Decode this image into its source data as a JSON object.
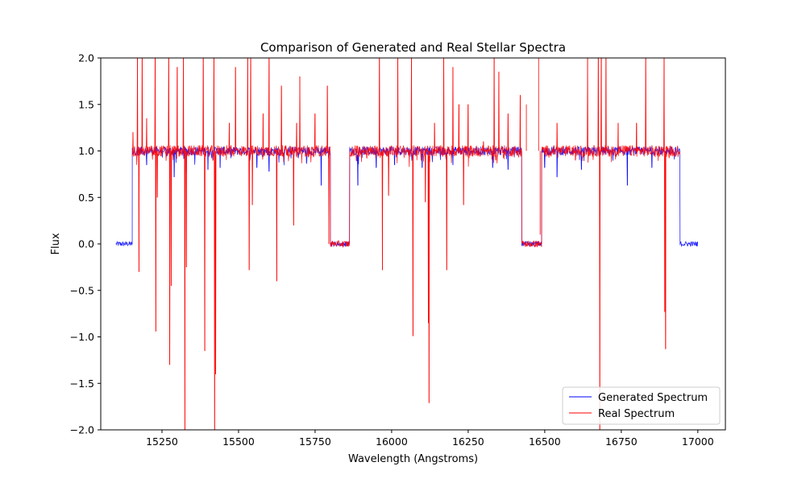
{
  "chart_data": {
    "type": "line",
    "title": "Comparison of Generated and Real Stellar Spectra",
    "xlabel": "Wavelength (Angstroms)",
    "ylabel": "Flux",
    "xlim": [
      15050,
      17090
    ],
    "ylim": [
      -2.0,
      2.0
    ],
    "xticks": [
      15250,
      15500,
      15750,
      16000,
      16250,
      16500,
      16750,
      17000
    ],
    "xtick_labels": [
      "15250",
      "15500",
      "15750",
      "16000",
      "16250",
      "16500",
      "16750",
      "17000"
    ],
    "yticks": [
      -2.0,
      -1.5,
      -1.0,
      -0.5,
      0.0,
      0.5,
      1.0,
      1.5,
      2.0
    ],
    "ytick_labels": [
      "−2.0",
      "−1.5",
      "−1.0",
      "−0.5",
      "0.0",
      "0.5",
      "1.0",
      "1.5",
      "2.0"
    ],
    "grid": false,
    "legend_position": "bottom-right",
    "series": [
      {
        "name": "Generated Spectrum",
        "color": "#0000ff",
        "x_range": [
          15100,
          17000
        ],
        "baseline_segments": [
          {
            "x": [
              15100,
              15153
            ],
            "y": 0.0
          },
          {
            "x": [
              15153,
              15800
            ],
            "y": 1.0
          },
          {
            "x": [
              15800,
              15863
            ],
            "y": 0.0
          },
          {
            "x": [
              15863,
              16425
            ],
            "y": 1.0
          },
          {
            "x": [
              16425,
              16490
            ],
            "y": 0.0
          },
          {
            "x": [
              16490,
              16942
            ],
            "y": 1.0
          },
          {
            "x": [
              16942,
              17000
            ],
            "y": 0.0
          }
        ],
        "absorption_lines": [
          {
            "x": 15200,
            "y": 0.85
          },
          {
            "x": 15290,
            "y": 0.72
          },
          {
            "x": 15330,
            "y": 0.78
          },
          {
            "x": 15400,
            "y": 0.8
          },
          {
            "x": 15440,
            "y": 0.82
          },
          {
            "x": 15560,
            "y": 0.82
          },
          {
            "x": 15600,
            "y": 0.78
          },
          {
            "x": 15770,
            "y": 0.63
          },
          {
            "x": 15890,
            "y": 0.63
          },
          {
            "x": 15950,
            "y": 0.82
          },
          {
            "x": 16010,
            "y": 0.85
          },
          {
            "x": 16100,
            "y": 0.82
          },
          {
            "x": 16200,
            "y": 0.85
          },
          {
            "x": 16330,
            "y": 0.82
          },
          {
            "x": 16380,
            "y": 0.8
          },
          {
            "x": 16500,
            "y": 0.82
          },
          {
            "x": 16540,
            "y": 0.72
          },
          {
            "x": 16620,
            "y": 0.8
          },
          {
            "x": 16770,
            "y": 0.63
          },
          {
            "x": 16850,
            "y": 0.82
          }
        ]
      },
      {
        "name": "Real Spectrum",
        "color": "#ff0000",
        "x_range": [
          15153,
          16942
        ],
        "baseline_segments": [
          {
            "x": [
              15153,
              15800
            ],
            "y": 1.0
          },
          {
            "x": [
              15800,
              15863
            ],
            "y": 0.0
          },
          {
            "x": [
              15863,
              16425
            ],
            "y": 1.0
          },
          {
            "x": [
              16425,
              16490
            ],
            "y": 0.0
          },
          {
            "x": [
              16490,
              16942
            ],
            "y": 1.0
          }
        ],
        "spikes": [
          {
            "x": 15155,
            "y": 1.2
          },
          {
            "x": 15170,
            "y": 2.0
          },
          {
            "x": 15175,
            "y": -0.3
          },
          {
            "x": 15185,
            "y": 2.0
          },
          {
            "x": 15200,
            "y": 1.35
          },
          {
            "x": 15228,
            "y": 2.0
          },
          {
            "x": 15230,
            "y": -0.94
          },
          {
            "x": 15235,
            "y": 0.5
          },
          {
            "x": 15272,
            "y": 2.0
          },
          {
            "x": 15275,
            "y": -1.3
          },
          {
            "x": 15280,
            "y": -0.45
          },
          {
            "x": 15300,
            "y": 1.9
          },
          {
            "x": 15320,
            "y": 2.0
          },
          {
            "x": 15325,
            "y": -2.0
          },
          {
            "x": 15330,
            "y": -0.25
          },
          {
            "x": 15385,
            "y": 2.0
          },
          {
            "x": 15390,
            "y": -1.15
          },
          {
            "x": 15420,
            "y": 2.0
          },
          {
            "x": 15422,
            "y": -2.0
          },
          {
            "x": 15425,
            "y": -1.4
          },
          {
            "x": 15470,
            "y": 1.3
          },
          {
            "x": 15490,
            "y": 1.9
          },
          {
            "x": 15530,
            "y": 2.0
          },
          {
            "x": 15535,
            "y": -0.28
          },
          {
            "x": 15540,
            "y": 2.0
          },
          {
            "x": 15545,
            "y": 0.42
          },
          {
            "x": 15580,
            "y": 1.4
          },
          {
            "x": 15600,
            "y": 2.0
          },
          {
            "x": 15625,
            "y": -0.4
          },
          {
            "x": 15640,
            "y": 1.7
          },
          {
            "x": 15660,
            "y": 0.95
          },
          {
            "x": 15680,
            "y": 0.2
          },
          {
            "x": 15690,
            "y": 1.3
          },
          {
            "x": 15700,
            "y": 1.8
          },
          {
            "x": 15750,
            "y": 1.4
          },
          {
            "x": 15790,
            "y": 1.7
          },
          {
            "x": 15795,
            "y": 0.0
          },
          {
            "x": 15960,
            "y": 2.0
          },
          {
            "x": 15970,
            "y": -0.28
          },
          {
            "x": 15990,
            "y": 0.52
          },
          {
            "x": 16020,
            "y": 2.0
          },
          {
            "x": 16065,
            "y": 2.0
          },
          {
            "x": 16070,
            "y": -0.99
          },
          {
            "x": 16110,
            "y": 0.45
          },
          {
            "x": 16120,
            "y": -0.85
          },
          {
            "x": 16122,
            "y": -1.71
          },
          {
            "x": 16140,
            "y": 1.3
          },
          {
            "x": 16170,
            "y": 2.0
          },
          {
            "x": 16180,
            "y": -0.28
          },
          {
            "x": 16200,
            "y": 1.9
          },
          {
            "x": 16220,
            "y": 1.5
          },
          {
            "x": 16235,
            "y": 0.42
          },
          {
            "x": 16250,
            "y": 1.5
          },
          {
            "x": 16300,
            "y": 1.1
          },
          {
            "x": 16335,
            "y": 2.0
          },
          {
            "x": 16340,
            "y": 0.9
          },
          {
            "x": 16350,
            "y": 1.85
          },
          {
            "x": 16380,
            "y": 1.4
          },
          {
            "x": 16420,
            "y": 1.6
          },
          {
            "x": 16440,
            "y": 1.5
          },
          {
            "x": 16480,
            "y": 2.0
          },
          {
            "x": 16485,
            "y": 0.1
          },
          {
            "x": 16540,
            "y": 1.3
          },
          {
            "x": 16600,
            "y": 0.9
          },
          {
            "x": 16640,
            "y": 2.0
          },
          {
            "x": 16675,
            "y": 2.0
          },
          {
            "x": 16680,
            "y": -2.0
          },
          {
            "x": 16685,
            "y": 2.0
          },
          {
            "x": 16700,
            "y": 2.0
          },
          {
            "x": 16740,
            "y": 1.3
          },
          {
            "x": 16800,
            "y": 1.3
          },
          {
            "x": 16830,
            "y": 2.0
          },
          {
            "x": 16890,
            "y": 2.0
          },
          {
            "x": 16892,
            "y": -0.73
          },
          {
            "x": 16895,
            "y": -1.13
          }
        ]
      }
    ]
  }
}
